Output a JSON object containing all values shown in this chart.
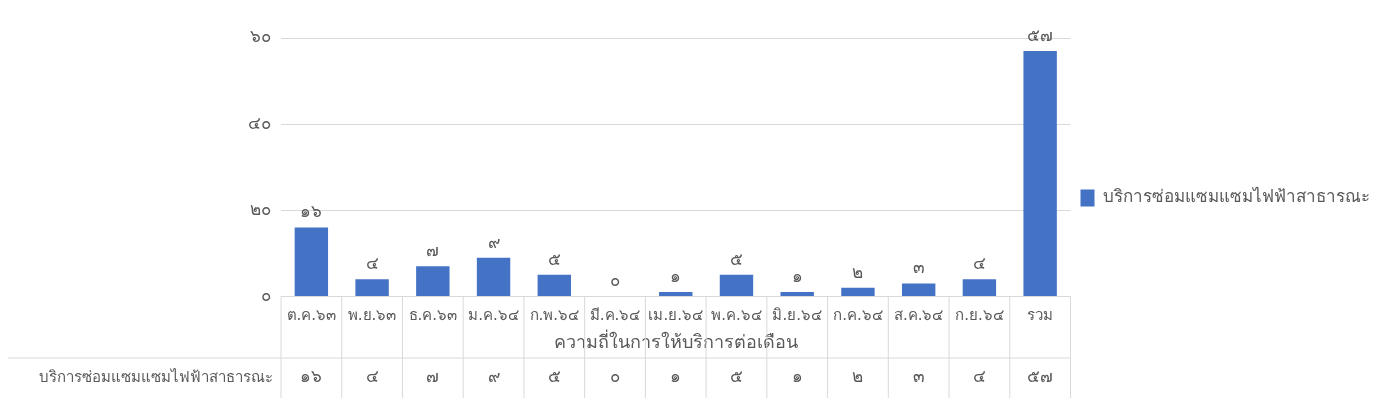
{
  "chart_data": {
    "type": "bar",
    "xlabel": "ความถี่ในการให้บริการต่อเดือน",
    "categories": [
      "ต.ค.๖๓",
      "พ.ย.๖๓",
      "ธ.ค.๖๓",
      "ม.ค.๖๔",
      "ก.พ.๖๔",
      "มี.ค.๖๔",
      "เม.ย.๖๔",
      "พ.ค.๖๔",
      "มิ.ย.๖๔",
      "ก.ค.๖๔",
      "ส.ค.๖๔",
      "ก.ย.๖๔",
      "รวม"
    ],
    "series": [
      {
        "name": "บริการซ่อมแซมแซมไฟฟ้าสาธารณะ",
        "color": "#4472c4",
        "values": [
          16,
          4,
          7,
          9,
          5,
          0,
          1,
          5,
          1,
          2,
          3,
          4,
          57
        ],
        "value_labels": [
          "๑๖",
          "๔",
          "๗",
          "๙",
          "๕",
          "๐",
          "๑",
          "๕",
          "๑",
          "๒",
          "๓",
          "๔",
          "๕๗"
        ]
      }
    ],
    "ylim": [
      0,
      60
    ],
    "yticks": [
      {
        "value": 0,
        "label": "๐"
      },
      {
        "value": 20,
        "label": "๒๐"
      },
      {
        "value": 40,
        "label": "๔๐"
      },
      {
        "value": 60,
        "label": "๖๐"
      }
    ],
    "grid": "y",
    "legend": "right"
  }
}
